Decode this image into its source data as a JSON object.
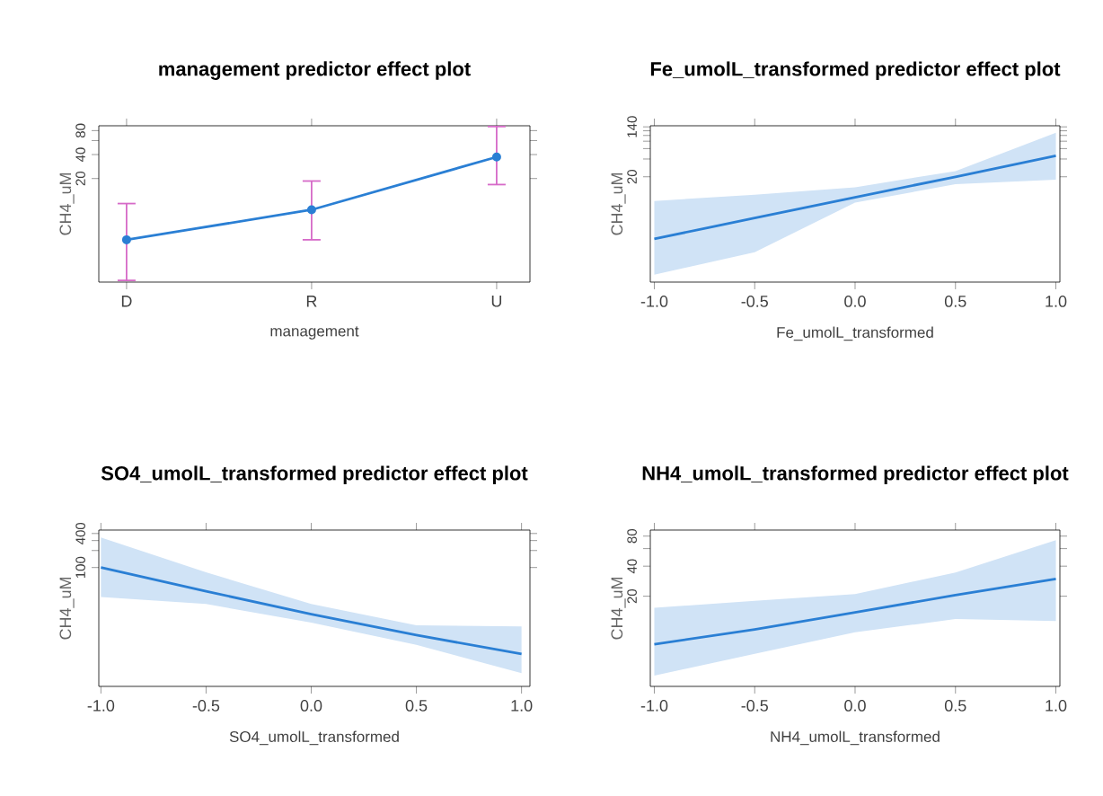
{
  "chart_data": [
    {
      "type": "line",
      "title": "management predictor effect plot",
      "xlabel": "management",
      "ylabel": "CH4_uM",
      "categories": [
        "D",
        "R",
        "U"
      ],
      "values": [
        3.4,
        8.1,
        37.3
      ],
      "errors": [
        [
          1.05,
          9.7
        ],
        [
          3.4,
          18.6
        ],
        [
          16.8,
          90
        ]
      ],
      "color": "#2a7fd4",
      "ylim": [
        1,
        92
      ],
      "yticks": [
        20,
        40,
        {
          "value": 60,
          "label": null
        },
        80
      ],
      "log": true,
      "marker": "circle",
      "line_style": "solid",
      "grid": false
    },
    {
      "type": "line",
      "title": "Fe_umolL_transformed predictor effect plot",
      "xlabel": "Fe_umolL_transformed",
      "ylabel": "CH4_uM",
      "xlim": [
        -1.02,
        1.02
      ],
      "xticks": [
        {
          "value": -1,
          "label": "-1.0"
        },
        {
          "value": -0.5,
          "label": "-0.5"
        },
        {
          "value": 0,
          "label": "0.0"
        },
        {
          "value": 0.5,
          "label": "0.5"
        },
        {
          "value": 1,
          "label": "1.0"
        }
      ],
      "ylim": [
        0.33,
        146
      ],
      "yticks": [
        20,
        {
          "value": 40,
          "label": null
        },
        {
          "value": 60,
          "label": null
        },
        {
          "value": 80,
          "label": null
        },
        {
          "value": 100,
          "label": null
        },
        {
          "value": 120,
          "label": null
        },
        140
      ],
      "log": true,
      "marker": "none",
      "line_style": "solid",
      "grid": false,
      "series": [
        {
          "color": "#2a7fd4",
          "x": [
            -1,
            -0.5,
            0,
            0.5,
            1
          ],
          "values": [
            1.78,
            4.0,
            9.0,
            20,
            45.5
          ],
          "lower": [
            0.44,
            1.06,
            7.3,
            15,
            17.8
          ],
          "upper": [
            7.8,
            9.9,
            13.3,
            25,
            111
          ]
        }
      ]
    },
    {
      "type": "line",
      "title": "SO4_umolL_transformed predictor effect plot",
      "xlabel": "SO4_umolL_transformed",
      "ylabel": "CH4_uM",
      "xlim": [
        -1.01,
        1.04
      ],
      "xticks": [
        {
          "value": -1,
          "label": "-1.0"
        },
        {
          "value": -0.5,
          "label": "-0.5"
        },
        {
          "value": 0,
          "label": "0.0"
        },
        {
          "value": 0.5,
          "label": "0.5"
        },
        {
          "value": 1,
          "label": "1.0"
        }
      ],
      "ylim": [
        0.79,
        460
      ],
      "yticks": [
        100,
        {
          "value": 200,
          "label": null
        },
        {
          "value": 300,
          "label": null
        },
        400
      ],
      "log": true,
      "marker": "none",
      "line_style": "solid",
      "grid": false,
      "series": [
        {
          "color": "#2a7fd4",
          "x": [
            -1,
            -0.5,
            0,
            0.5,
            1
          ],
          "values": [
            100,
            38,
            15,
            6.4,
            2.95
          ],
          "lower": [
            30,
            22.6,
            10.6,
            4.3,
            1.35
          ],
          "upper": [
            340,
            82,
            22.6,
            9.5,
            9.1
          ]
        }
      ]
    },
    {
      "type": "line",
      "title": "NH4_umolL_transformed predictor effect plot",
      "xlabel": "NH4_umolL_transformed",
      "ylabel": "CH4_uM",
      "xlim": [
        -1.02,
        1.02
      ],
      "xticks": [
        {
          "value": -1,
          "label": "-1.0"
        },
        {
          "value": -0.5,
          "label": "-0.5"
        },
        {
          "value": 0,
          "label": "0.0"
        },
        {
          "value": 0.5,
          "label": "0.5"
        },
        {
          "value": 1,
          "label": "1.0"
        }
      ],
      "ylim": [
        2.5,
        92
      ],
      "yticks": [
        20,
        40,
        {
          "value": 60,
          "label": null
        },
        80
      ],
      "log": true,
      "marker": "none",
      "line_style": "solid",
      "grid": false,
      "series": [
        {
          "color": "#2a7fd4",
          "x": [
            -1,
            -0.5,
            0,
            0.5,
            1
          ],
          "values": [
            6.6,
            9.3,
            13.8,
            20.5,
            29.8
          ],
          "lower": [
            3.2,
            5.3,
            8.7,
            11.8,
            11.3
          ],
          "upper": [
            15.3,
            18,
            21,
            34.6,
            73
          ]
        }
      ]
    }
  ]
}
